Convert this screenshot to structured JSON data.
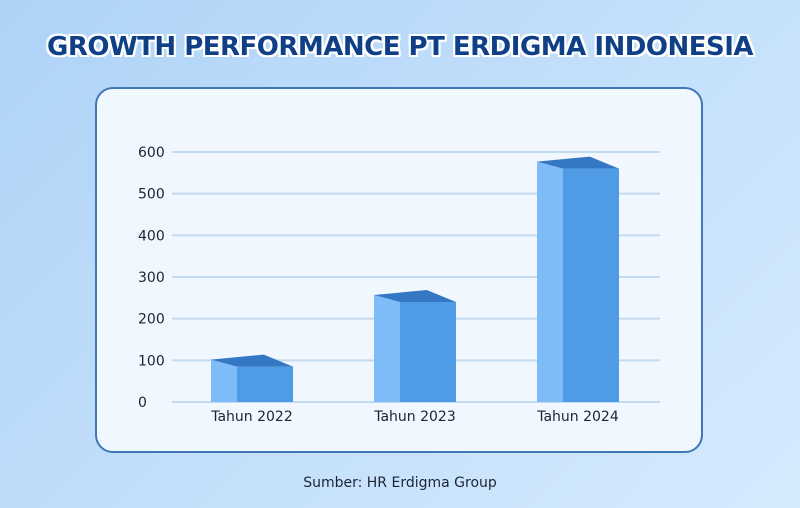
{
  "title": "GROWTH PERFORMANCE PT ERDIGMA INDONESIA",
  "source": "Sumber: HR Erdigma Group",
  "colors": {
    "title": "#0f3f86",
    "bar_front": "#4f9be5",
    "bar_side": "#7ebcf7",
    "bar_top": "#3478c4",
    "grid": "#c3dbf1",
    "card_border": "#3f78b5"
  },
  "chart_data": {
    "type": "bar",
    "title": "GROWTH PERFORMANCE PT ERDIGMA INDONESIA",
    "categories": [
      "Tahun 2022",
      "Tahun 2023",
      "Tahun 2024"
    ],
    "values": [
      85,
      240,
      560
    ],
    "xlabel": "",
    "ylabel": "",
    "ylim": [
      0,
      600
    ],
    "yticks": [
      0,
      100,
      200,
      300,
      400,
      500,
      600
    ],
    "grid": true,
    "style": "3d-bar",
    "source": "Sumber: HR Erdigma Group"
  }
}
